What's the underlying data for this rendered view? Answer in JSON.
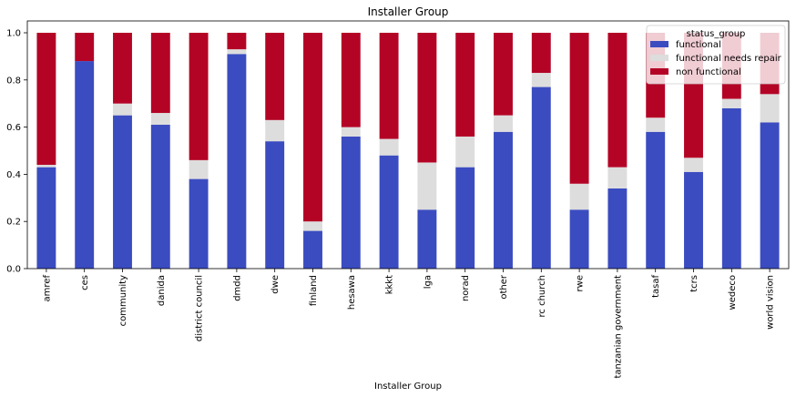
{
  "chart_data": {
    "type": "bar",
    "stacked": true,
    "title": "Installer Group",
    "xlabel": "Installer Group",
    "ylabel": "",
    "ylim": [
      0,
      1.0
    ],
    "yticks": [
      "0.0",
      "0.2",
      "0.4",
      "0.6",
      "0.8",
      "1.0"
    ],
    "ytick_values": [
      0,
      0.2,
      0.4,
      0.6,
      0.8,
      1.0
    ],
    "categories": [
      "amref",
      "ces",
      "community",
      "danida",
      "district council",
      "dmdd",
      "dwe",
      "finland",
      "hesawa",
      "kkkt",
      "lga",
      "norad",
      "other",
      "rc church",
      "rwe",
      "tanzanian government",
      "tasaf",
      "tcrs",
      "wedeco",
      "world vision"
    ],
    "series": [
      {
        "name": "functional",
        "color": "#3b4cc0",
        "values": [
          0.43,
          0.88,
          0.65,
          0.61,
          0.38,
          0.91,
          0.54,
          0.16,
          0.56,
          0.48,
          0.25,
          0.43,
          0.58,
          0.77,
          0.25,
          0.34,
          0.58,
          0.41,
          0.68,
          0.62
        ]
      },
      {
        "name": "functional needs repair",
        "color": "#dddddd",
        "values": [
          0.01,
          0.0,
          0.05,
          0.05,
          0.08,
          0.02,
          0.09,
          0.04,
          0.04,
          0.07,
          0.2,
          0.13,
          0.07,
          0.06,
          0.11,
          0.09,
          0.06,
          0.06,
          0.04,
          0.12
        ]
      },
      {
        "name": "non functional",
        "color": "#b40426",
        "values": [
          0.56,
          0.12,
          0.3,
          0.34,
          0.54,
          0.07,
          0.37,
          0.8,
          0.4,
          0.45,
          0.55,
          0.44,
          0.35,
          0.17,
          0.64,
          0.57,
          0.36,
          0.53,
          0.28,
          0.26
        ]
      }
    ],
    "legend": {
      "title": "status_group",
      "location": "top-right"
    }
  }
}
